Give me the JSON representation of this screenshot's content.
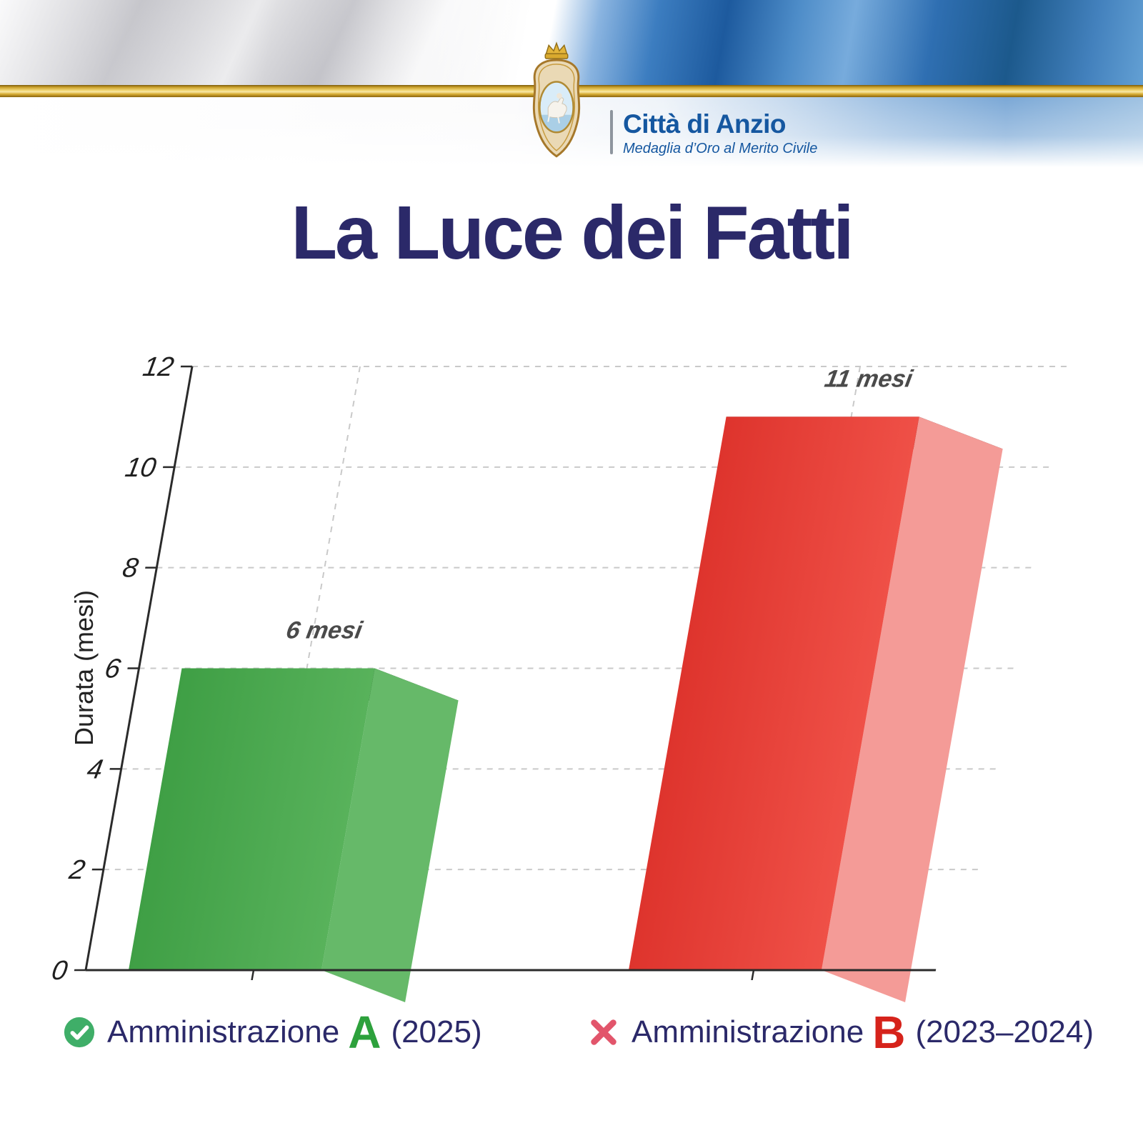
{
  "header": {
    "city_name": "Città di Anzio",
    "motto": "Medaglia d’Oro al Merito Civile"
  },
  "title": "La Luce dei Fatti",
  "chart_data": {
    "type": "bar",
    "title": "La Luce dei Fatti",
    "ylabel": "Durata (mesi)",
    "ylim": [
      0,
      12
    ],
    "yticks": [
      0,
      2,
      4,
      6,
      8,
      10,
      12
    ],
    "grid": true,
    "style": "3d-skewed",
    "categories": [
      "Amministrazione A (2025)",
      "Amministrazione B (2023–2024)"
    ],
    "values": [
      6,
      11
    ],
    "bar_labels": [
      "6 mesi",
      "11 mesi"
    ],
    "bar_colors": [
      {
        "front": "#3f9f45",
        "front_light": "#58b25b",
        "side": "#66b969",
        "top": "#173a1d"
      },
      {
        "front": "#de342d",
        "front_light": "#ef5047",
        "side": "#f49b97",
        "top": "#551210"
      }
    ],
    "axis_color": "#2a2a2a",
    "grid_color": "#c9c9c9",
    "bar_label_color": "#4a4a4a",
    "tick_label_color": "#1f1f1f"
  },
  "legend": {
    "text_color": "#2b2969",
    "items": [
      {
        "icon": "check-circle",
        "icon_color": "#3fae68",
        "prefix": "Amministrazione",
        "letter": "A",
        "letter_color": "#2da13c",
        "suffix": "(2025)"
      },
      {
        "icon": "x-mark",
        "icon_color": "#e2556b",
        "prefix": "Amministrazione",
        "letter": "B",
        "letter_color": "#d6231b",
        "suffix": "(2023–2024)"
      }
    ]
  }
}
